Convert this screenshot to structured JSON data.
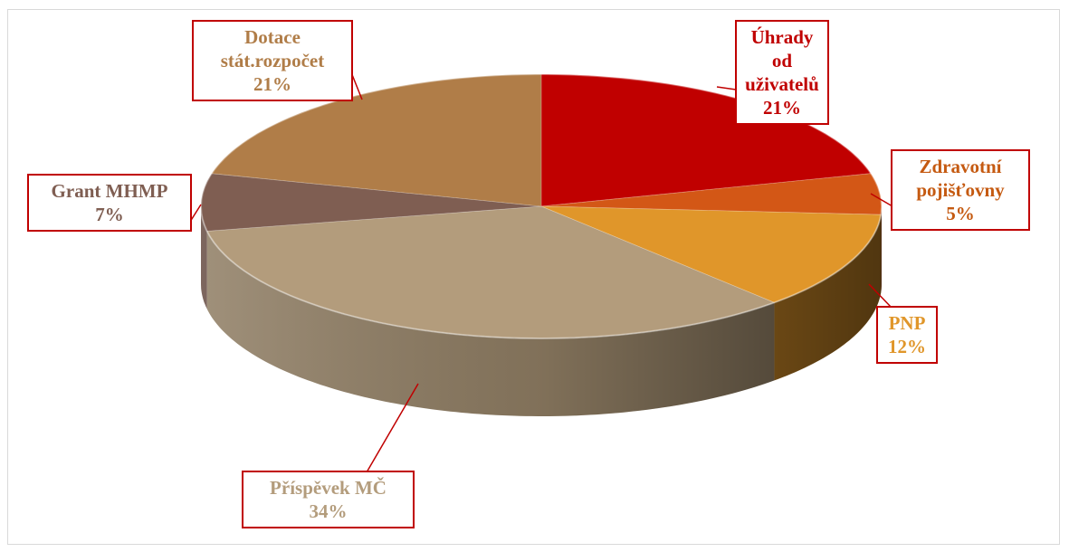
{
  "chart_data": {
    "type": "pie3d",
    "categories": [
      "Úhrady od uživatelů",
      "Zdravotní pojišťovny",
      "PNP",
      "Příspěvek MČ",
      "Grant MHMP",
      "Dotace stát.rozpočet"
    ],
    "values": [
      21,
      5,
      12,
      34,
      7,
      21
    ],
    "value_labels": [
      "21%",
      "5%",
      "12%",
      "34%",
      "7%",
      "21%"
    ],
    "colors": [
      "#c00000",
      "#d35716",
      "#e0962a",
      "#b39c7c",
      "#7f5e52",
      "#b07d48"
    ]
  }
}
